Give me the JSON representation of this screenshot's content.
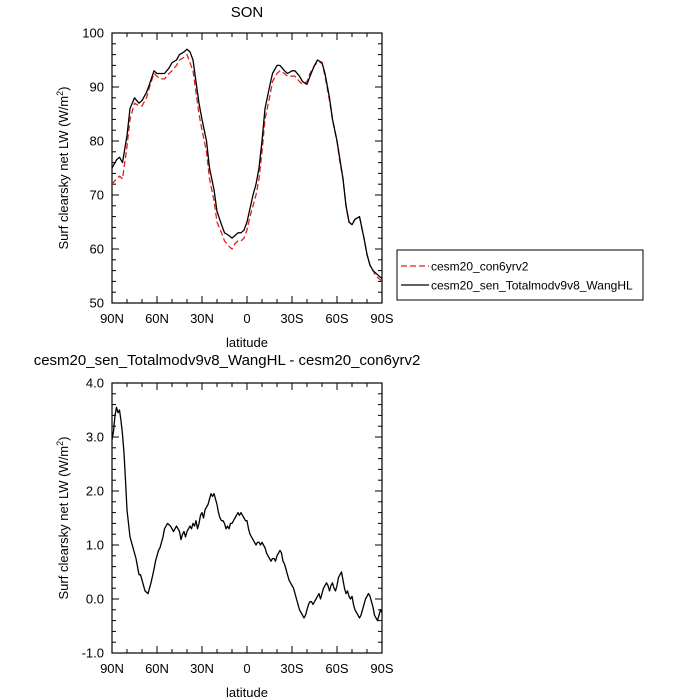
{
  "colors": {
    "axis": "#000000",
    "control": "#e02020",
    "sensitivity": "#000000"
  },
  "chart_data": [
    {
      "type": "line",
      "title": "SON",
      "xlabel": "latitude",
      "ylabel": "Surf clearsky net LW (W/m",
      "ylabel_sup": "2",
      "ylabel_tail": ")",
      "xlim": [
        90,
        -90
      ],
      "ylim": [
        50,
        100
      ],
      "x_ticks": [
        90,
        60,
        30,
        0,
        -30,
        -60,
        -90
      ],
      "x_tick_labels": [
        "90N",
        "60N",
        "30N",
        "0",
        "30S",
        "60S",
        "90S"
      ],
      "y_ticks": [
        50,
        60,
        70,
        80,
        90,
        100
      ],
      "y_tick_labels": [
        "50",
        "60",
        "70",
        "80",
        "90",
        "100"
      ],
      "legend_position": "right",
      "series": [
        {
          "name": "cesm20_con6yrv2",
          "style": "dashed",
          "color": "#e02020",
          "x": [
            90,
            87,
            85,
            83,
            80,
            78,
            75,
            72,
            70,
            67,
            65,
            62,
            60,
            58,
            55,
            52,
            50,
            47,
            45,
            42,
            40,
            38,
            36,
            34,
            32,
            30,
            27,
            25,
            22,
            20,
            17,
            15,
            12,
            10,
            8,
            6,
            4,
            2,
            0,
            -2,
            -4,
            -6,
            -8,
            -10,
            -12,
            -15,
            -17,
            -20,
            -22,
            -25,
            -27,
            -30,
            -32,
            -35,
            -37,
            -40,
            -42,
            -45,
            -47,
            -50,
            -52,
            -55,
            -57,
            -60,
            -62,
            -64,
            -66,
            -68,
            -70,
            -72,
            -75,
            -78,
            -80,
            -82,
            -84,
            -86,
            -88,
            -90
          ],
          "y": [
            72,
            73,
            73.5,
            73,
            79,
            84,
            87,
            86.5,
            86.5,
            88,
            90,
            92.5,
            92,
            91.5,
            91.5,
            92.5,
            93,
            94,
            95,
            95.5,
            96,
            94.5,
            93,
            89,
            85,
            82,
            78,
            73,
            69,
            65,
            63,
            61.5,
            60.5,
            60,
            61,
            61.5,
            61.5,
            62,
            63.5,
            66,
            68,
            70,
            73,
            78,
            84,
            88,
            91,
            92.5,
            93,
            92.5,
            92,
            92,
            92,
            91,
            90.5,
            91,
            92.5,
            94,
            94.5,
            94.5,
            92,
            87.5,
            84,
            80,
            76,
            73,
            68,
            65,
            64.5,
            65.5,
            66,
            62,
            59,
            57,
            56,
            55,
            54.5,
            54
          ]
        },
        {
          "name": "cesm20_sen_Totalmodv9v8_WangHL",
          "style": "solid",
          "color": "#000000",
          "x": [
            90,
            87,
            85,
            83,
            80,
            78,
            75,
            72,
            70,
            67,
            65,
            62,
            60,
            58,
            55,
            52,
            50,
            47,
            45,
            42,
            40,
            38,
            36,
            34,
            32,
            30,
            27,
            25,
            22,
            20,
            17,
            15,
            12,
            10,
            8,
            6,
            4,
            2,
            0,
            -2,
            -4,
            -6,
            -8,
            -10,
            -12,
            -15,
            -17,
            -20,
            -22,
            -25,
            -27,
            -30,
            -32,
            -35,
            -37,
            -40,
            -42,
            -45,
            -47,
            -50,
            -52,
            -55,
            -57,
            -60,
            -62,
            -64,
            -66,
            -68,
            -70,
            -72,
            -75,
            -78,
            -80,
            -82,
            -84,
            -86,
            -88,
            -90
          ],
          "y": [
            75,
            76.5,
            77,
            76,
            81,
            86,
            88,
            87,
            87.5,
            89,
            90.5,
            93,
            92.5,
            92.5,
            92.5,
            93.5,
            94.5,
            95,
            96,
            96.5,
            97,
            96.5,
            95,
            91,
            87,
            84,
            80,
            75,
            71,
            67,
            64.5,
            63,
            62.5,
            62,
            62.5,
            63,
            63,
            63.5,
            65,
            67.5,
            70,
            72,
            75,
            80,
            86,
            90,
            92.5,
            94,
            94,
            93,
            92.5,
            93,
            93,
            92,
            91,
            90.5,
            92,
            94,
            95,
            94.5,
            92.5,
            88,
            84,
            80,
            76.5,
            73,
            68,
            65,
            64.5,
            65.5,
            66,
            62,
            59,
            57,
            56,
            55.5,
            55,
            54.5
          ]
        }
      ]
    },
    {
      "type": "line",
      "title": "cesm20_sen_Totalmodv9v8_WangHL - cesm20_con6yrv2",
      "xlabel": "latitude",
      "ylabel": "Surf clearsky net LW (W/m",
      "ylabel_sup": "2",
      "ylabel_tail": ")",
      "xlim": [
        90,
        -90
      ],
      "ylim": [
        -1,
        4
      ],
      "x_ticks": [
        90,
        60,
        30,
        0,
        -30,
        -60,
        -90
      ],
      "x_tick_labels": [
        "90N",
        "60N",
        "30N",
        "0",
        "30S",
        "60S",
        "90S"
      ],
      "y_ticks": [
        -1,
        0,
        1,
        2,
        3,
        4
      ],
      "y_tick_labels": [
        "-1.0",
        "0.0",
        "1.0",
        "2.0",
        "3.0",
        "4.0"
      ],
      "series": [
        {
          "style": "solid",
          "color": "#000000",
          "x": [
            90,
            89,
            88,
            87,
            86,
            85,
            84,
            83,
            82,
            81,
            80,
            79,
            78,
            77,
            76,
            75,
            74,
            73,
            72,
            71,
            70,
            68,
            66,
            64,
            62,
            61,
            60,
            59,
            58,
            57,
            56,
            55,
            53,
            51,
            49,
            47,
            45,
            44,
            43,
            42,
            41,
            40,
            39,
            38,
            37,
            36,
            35,
            34,
            33,
            32,
            31,
            30,
            29,
            28,
            27,
            26,
            25,
            24,
            23,
            22,
            21,
            20,
            19,
            18,
            17,
            16,
            15,
            14,
            13,
            12,
            11,
            10,
            9,
            8,
            7,
            6,
            5,
            4,
            3,
            2,
            1,
            0,
            -1,
            -2,
            -3,
            -4,
            -5,
            -6,
            -7,
            -8,
            -9,
            -10,
            -11,
            -12,
            -13,
            -14,
            -15,
            -16,
            -17,
            -18,
            -19,
            -20,
            -21,
            -22,
            -23,
            -24,
            -25,
            -26,
            -27,
            -28,
            -29,
            -30,
            -31,
            -32,
            -33,
            -34,
            -35,
            -36,
            -37,
            -38,
            -39,
            -40,
            -41,
            -42,
            -43,
            -44,
            -45,
            -46,
            -47,
            -48,
            -49,
            -50,
            -51,
            -52,
            -53,
            -54,
            -55,
            -56,
            -57,
            -58,
            -59,
            -60,
            -61,
            -62,
            -63,
            -64,
            -65,
            -66,
            -67,
            -68,
            -69,
            -70,
            -71,
            -72,
            -73,
            -74,
            -75,
            -76,
            -77,
            -78,
            -79,
            -80,
            -81,
            -82,
            -83,
            -84,
            -85,
            -86,
            -87,
            -88,
            -89,
            -90
          ],
          "y": [
            2.95,
            3.1,
            3.4,
            3.55,
            3.45,
            3.5,
            3.3,
            3.05,
            2.7,
            2.2,
            1.65,
            1.4,
            1.15,
            1.05,
            0.95,
            0.85,
            0.75,
            0.6,
            0.45,
            0.45,
            0.35,
            0.15,
            0.1,
            0.3,
            0.55,
            0.7,
            0.8,
            0.9,
            0.95,
            1.05,
            1.15,
            1.3,
            1.4,
            1.35,
            1.25,
            1.35,
            1.25,
            1.1,
            1.2,
            1.25,
            1.15,
            1.25,
            1.3,
            1.35,
            1.3,
            1.4,
            1.35,
            1.45,
            1.3,
            1.4,
            1.55,
            1.6,
            1.5,
            1.65,
            1.7,
            1.75,
            1.85,
            1.95,
            1.9,
            1.95,
            1.85,
            1.75,
            1.6,
            1.5,
            1.45,
            1.45,
            1.4,
            1.3,
            1.35,
            1.3,
            1.4,
            1.4,
            1.45,
            1.5,
            1.55,
            1.6,
            1.55,
            1.6,
            1.55,
            1.5,
            1.45,
            1.45,
            1.3,
            1.2,
            1.15,
            1.1,
            1.05,
            1.0,
            1.05,
            1.05,
            1.0,
            1.05,
            1.0,
            0.95,
            0.85,
            0.8,
            0.75,
            0.7,
            0.75,
            0.75,
            0.7,
            0.8,
            0.85,
            0.9,
            0.85,
            0.7,
            0.65,
            0.55,
            0.45,
            0.35,
            0.3,
            0.25,
            0.2,
            0.1,
            0.0,
            -0.1,
            -0.2,
            -0.25,
            -0.3,
            -0.35,
            -0.3,
            -0.2,
            -0.1,
            -0.05,
            -0.05,
            -0.1,
            -0.05,
            0.0,
            0.05,
            0.1,
            0.0,
            0.1,
            0.2,
            0.25,
            0.3,
            0.25,
            0.15,
            0.25,
            0.3,
            0.2,
            0.15,
            0.25,
            0.4,
            0.45,
            0.5,
            0.35,
            0.2,
            0.1,
            0.15,
            0.05,
            0.0,
            0.05,
            -0.1,
            -0.2,
            -0.25,
            -0.3,
            -0.35,
            -0.3,
            -0.2,
            -0.1,
            0.0,
            0.05,
            0.1,
            0.05,
            -0.05,
            -0.15,
            -0.3,
            -0.35,
            -0.4,
            -0.3,
            -0.2,
            -0.25
          ]
        }
      ]
    }
  ]
}
